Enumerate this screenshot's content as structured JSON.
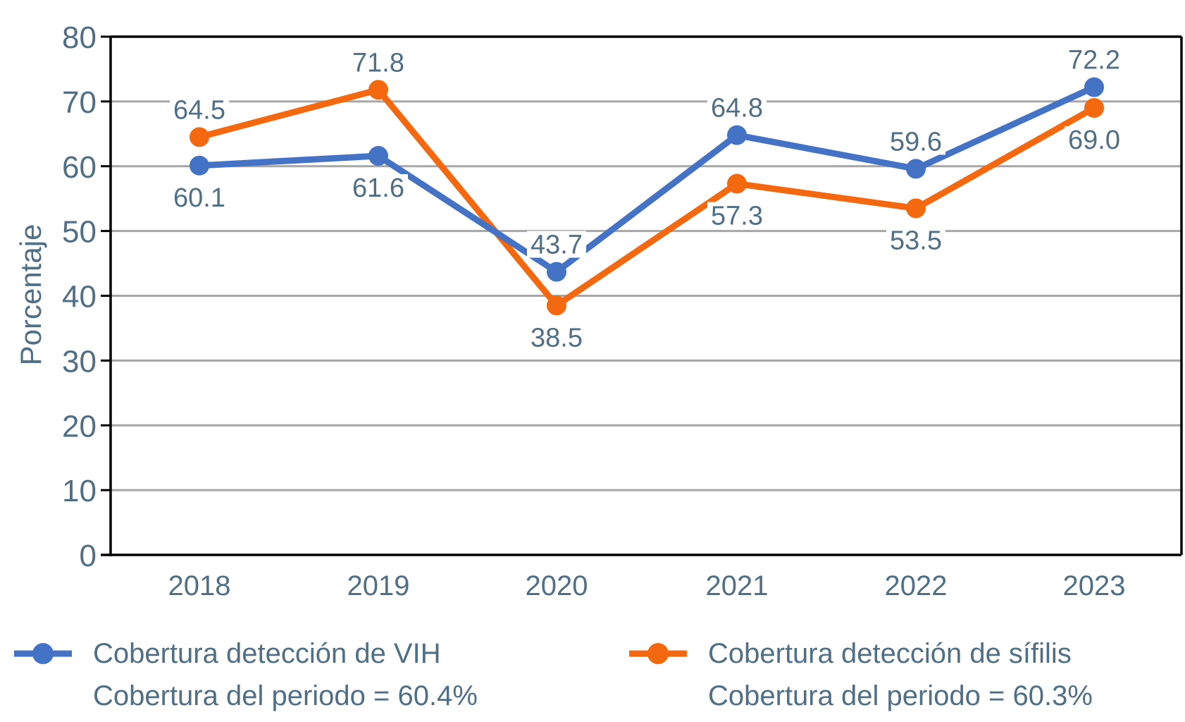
{
  "chart_data": {
    "type": "line",
    "title": "",
    "xlabel": "",
    "ylabel": "Porcentaje",
    "ylim": [
      0,
      80
    ],
    "yticks": [
      0,
      10,
      20,
      30,
      40,
      50,
      60,
      70,
      80
    ],
    "grid": true,
    "categories": [
      "2018",
      "2019",
      "2020",
      "2021",
      "2022",
      "2023"
    ],
    "series": [
      {
        "name": "Cobertura detección de VIH",
        "subtitle": "Cobertura del periodo = 60.4%",
        "color": "#4472c4",
        "values": [
          60.1,
          61.6,
          43.7,
          64.8,
          59.6,
          72.2
        ],
        "labels": [
          "60.1",
          "61.6",
          "43.7",
          "64.8",
          "59.6",
          "72.2"
        ],
        "label_pos": [
          "below",
          "below",
          "above",
          "above",
          "above",
          "above"
        ]
      },
      {
        "name": "Cobertura detección de sífilis",
        "subtitle": "Cobertura del periodo = 60.3%",
        "color": "#f4680f",
        "values": [
          64.5,
          71.8,
          38.5,
          57.3,
          53.5,
          69.0
        ],
        "labels": [
          "64.5",
          "71.8",
          "38.5",
          "57.3",
          "53.5",
          "69.0"
        ],
        "label_pos": [
          "above",
          "above",
          "below",
          "below",
          "below",
          "below"
        ]
      }
    ],
    "legend": "bottom"
  }
}
